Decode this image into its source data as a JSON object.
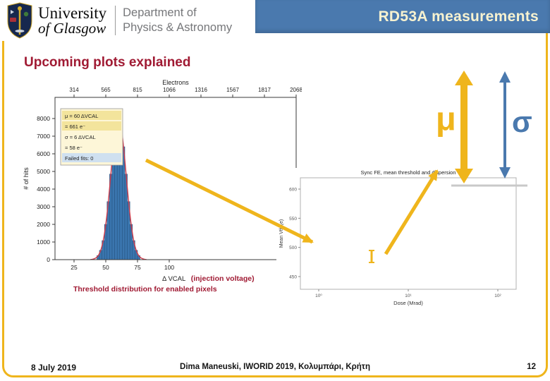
{
  "colors": {
    "gold": "#EFB51C",
    "banner_blue": "#4A79AE",
    "title_red": "#A01A33",
    "hist_bar_blue": "#3A75AE",
    "hist_bar_edge": "#24507C",
    "fit_red": "#CC3A4A"
  },
  "header": {
    "university_line1": "University",
    "university_line2": "of Glasgow",
    "dept_line1": "Department of",
    "dept_line2": "Physics & Astronomy",
    "banner_title": "RD53A measurements"
  },
  "slide": {
    "title": "Upcoming plots explained"
  },
  "chart_data": [
    {
      "id": "threshold-histogram",
      "type": "bar",
      "top_axis_label": "Electrons",
      "top_ticks": [
        314,
        565,
        815,
        1066,
        1316,
        1567,
        1817,
        2068
      ],
      "ylabel": "# of hits",
      "yticks": [
        0,
        1000,
        2000,
        3000,
        4000,
        5000,
        6000,
        7000,
        8000
      ],
      "xticks": [
        25,
        50,
        75,
        100
      ],
      "xlabel": "Δ VCAL",
      "xlabel_annotation": "(injection voltage)",
      "caption": "Threshold distribution for enabled pixels",
      "xlim": [
        10,
        200
      ],
      "ylim": [
        0,
        9200
      ],
      "bin_width": 2,
      "bin_centers": [
        44,
        46,
        48,
        50,
        52,
        54,
        56,
        58,
        60,
        62,
        64,
        66,
        68,
        70,
        72,
        74,
        76
      ],
      "counts": [
        230,
        530,
        1080,
        2000,
        3290,
        4850,
        6400,
        7570,
        8000,
        7570,
        6400,
        4850,
        3290,
        2000,
        1080,
        530,
        230
      ],
      "fit": {
        "shape": "gaussian",
        "mu": 60,
        "sigma": 6,
        "amplitude": 8000
      },
      "legend": [
        "μ = 60 ΔVCAL",
        "= 661 e⁻",
        "σ = 6 ΔVCAL",
        "= 58 e⁻",
        "Failed fits: 0"
      ]
    },
    {
      "id": "dose-plot",
      "type": "scatter",
      "title": "Sync FE, mean threshold and dispersion",
      "xlabel": "Dose (Mrad)",
      "ylabel": "Mean Vth (e)",
      "xticks": [
        "10⁰",
        "10¹",
        "10²"
      ],
      "yticks": [
        "600",
        "550",
        "500",
        "450"
      ]
    }
  ],
  "annotations": {
    "mu": "μ",
    "sigma": "σ"
  },
  "footer": {
    "date": "8 July 2019",
    "credit": "Dima Maneuski, IWORID 2019, Κολυμπάρι, Κρήτη",
    "page": "12"
  }
}
